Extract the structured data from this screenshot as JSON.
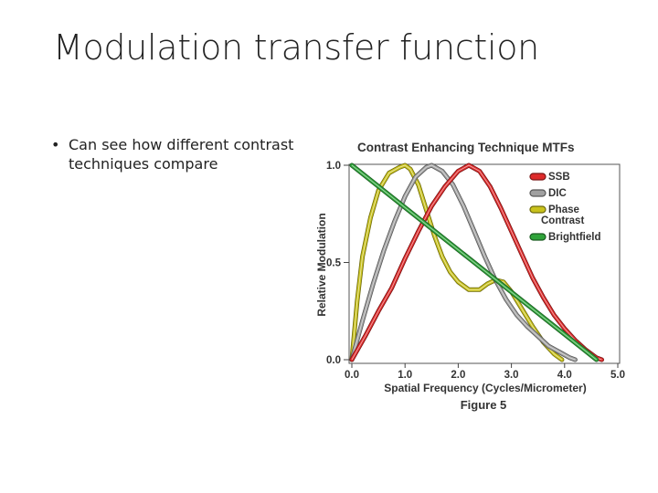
{
  "slide": {
    "title": "Modulation transfer function",
    "bullet_marker": "•",
    "bullet_text": "Can see how different contrast techniques compare"
  },
  "chart_data": {
    "type": "line",
    "title": "Contrast Enhancing Technique MTFs",
    "xlabel": "Spatial Frequency (Cycles/Micrometer)",
    "ylabel": "Relative Modulation",
    "caption": "Figure 5",
    "xlim": [
      0,
      5
    ],
    "ylim": [
      0,
      1
    ],
    "x_ticks": [
      "0.0",
      "1.0",
      "2.0",
      "3.0",
      "4.0",
      "5.0"
    ],
    "y_ticks": [
      "0.0",
      "0.5",
      "1.0"
    ],
    "grid": false,
    "legend_position": "top-right",
    "series": [
      {
        "name": "SSB",
        "color": "#dd2a2a",
        "points": [
          [
            0,
            0
          ],
          [
            0.25,
            0.12
          ],
          [
            0.5,
            0.25
          ],
          [
            0.75,
            0.37
          ],
          [
            1.0,
            0.52
          ],
          [
            1.25,
            0.66
          ],
          [
            1.5,
            0.79
          ],
          [
            1.75,
            0.89
          ],
          [
            2.0,
            0.97
          ],
          [
            2.2,
            1.0
          ],
          [
            2.4,
            0.97
          ],
          [
            2.6,
            0.89
          ],
          [
            2.8,
            0.78
          ],
          [
            3.0,
            0.66
          ],
          [
            3.2,
            0.54
          ],
          [
            3.4,
            0.42
          ],
          [
            3.6,
            0.32
          ],
          [
            3.8,
            0.23
          ],
          [
            4.0,
            0.16
          ],
          [
            4.2,
            0.1
          ],
          [
            4.4,
            0.05
          ],
          [
            4.6,
            0.01
          ],
          [
            4.7,
            0
          ]
        ]
      },
      {
        "name": "DIC",
        "color": "#a0a0a0",
        "points": [
          [
            0,
            0
          ],
          [
            0.2,
            0.2
          ],
          [
            0.4,
            0.39
          ],
          [
            0.6,
            0.56
          ],
          [
            0.8,
            0.71
          ],
          [
            1.0,
            0.84
          ],
          [
            1.2,
            0.94
          ],
          [
            1.4,
            0.99
          ],
          [
            1.5,
            1.0
          ],
          [
            1.7,
            0.97
          ],
          [
            1.9,
            0.9
          ],
          [
            2.1,
            0.79
          ],
          [
            2.3,
            0.66
          ],
          [
            2.5,
            0.53
          ],
          [
            2.7,
            0.41
          ],
          [
            2.9,
            0.31
          ],
          [
            3.1,
            0.23
          ],
          [
            3.3,
            0.17
          ],
          [
            3.5,
            0.12
          ],
          [
            3.7,
            0.07
          ],
          [
            3.9,
            0.04
          ],
          [
            4.1,
            0.01
          ],
          [
            4.2,
            0
          ]
        ]
      },
      {
        "name": "Phase Contrast",
        "color": "#c9c21c",
        "points": [
          [
            0,
            0
          ],
          [
            0.1,
            0.3
          ],
          [
            0.2,
            0.53
          ],
          [
            0.35,
            0.73
          ],
          [
            0.5,
            0.87
          ],
          [
            0.7,
            0.96
          ],
          [
            0.9,
            0.99
          ],
          [
            1.0,
            1.0
          ],
          [
            1.1,
            0.98
          ],
          [
            1.25,
            0.9
          ],
          [
            1.4,
            0.77
          ],
          [
            1.55,
            0.64
          ],
          [
            1.7,
            0.53
          ],
          [
            1.85,
            0.45
          ],
          [
            2.0,
            0.4
          ],
          [
            2.2,
            0.36
          ],
          [
            2.4,
            0.36
          ],
          [
            2.55,
            0.39
          ],
          [
            2.7,
            0.41
          ],
          [
            2.85,
            0.4
          ],
          [
            3.0,
            0.35
          ],
          [
            3.2,
            0.26
          ],
          [
            3.4,
            0.17
          ],
          [
            3.6,
            0.09
          ],
          [
            3.8,
            0.03
          ],
          [
            3.95,
            0
          ]
        ]
      },
      {
        "name": "Brightfield",
        "color": "#2fa33a",
        "points": [
          [
            0,
            1.0
          ],
          [
            4.6,
            0
          ]
        ]
      }
    ]
  }
}
